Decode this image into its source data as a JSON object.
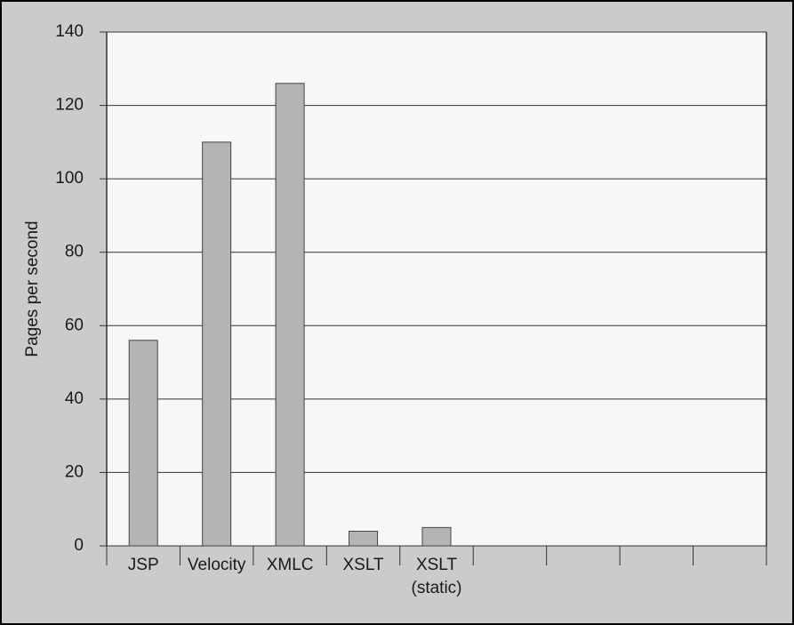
{
  "chart_data": {
    "type": "bar",
    "y_label": "Pages per second",
    "categories": [
      "JSP",
      "Velocity",
      "XMLC",
      "XSLT",
      "XSLT\n(static)",
      null,
      null,
      null,
      null
    ],
    "values": [
      56,
      110,
      126,
      4,
      5,
      null,
      null,
      null,
      null
    ],
    "color": "#b4b4b4",
    "ylim": [
      0,
      140
    ],
    "yticks": [
      0,
      20,
      40,
      60,
      80,
      100,
      120,
      140
    ],
    "grid": true
  }
}
